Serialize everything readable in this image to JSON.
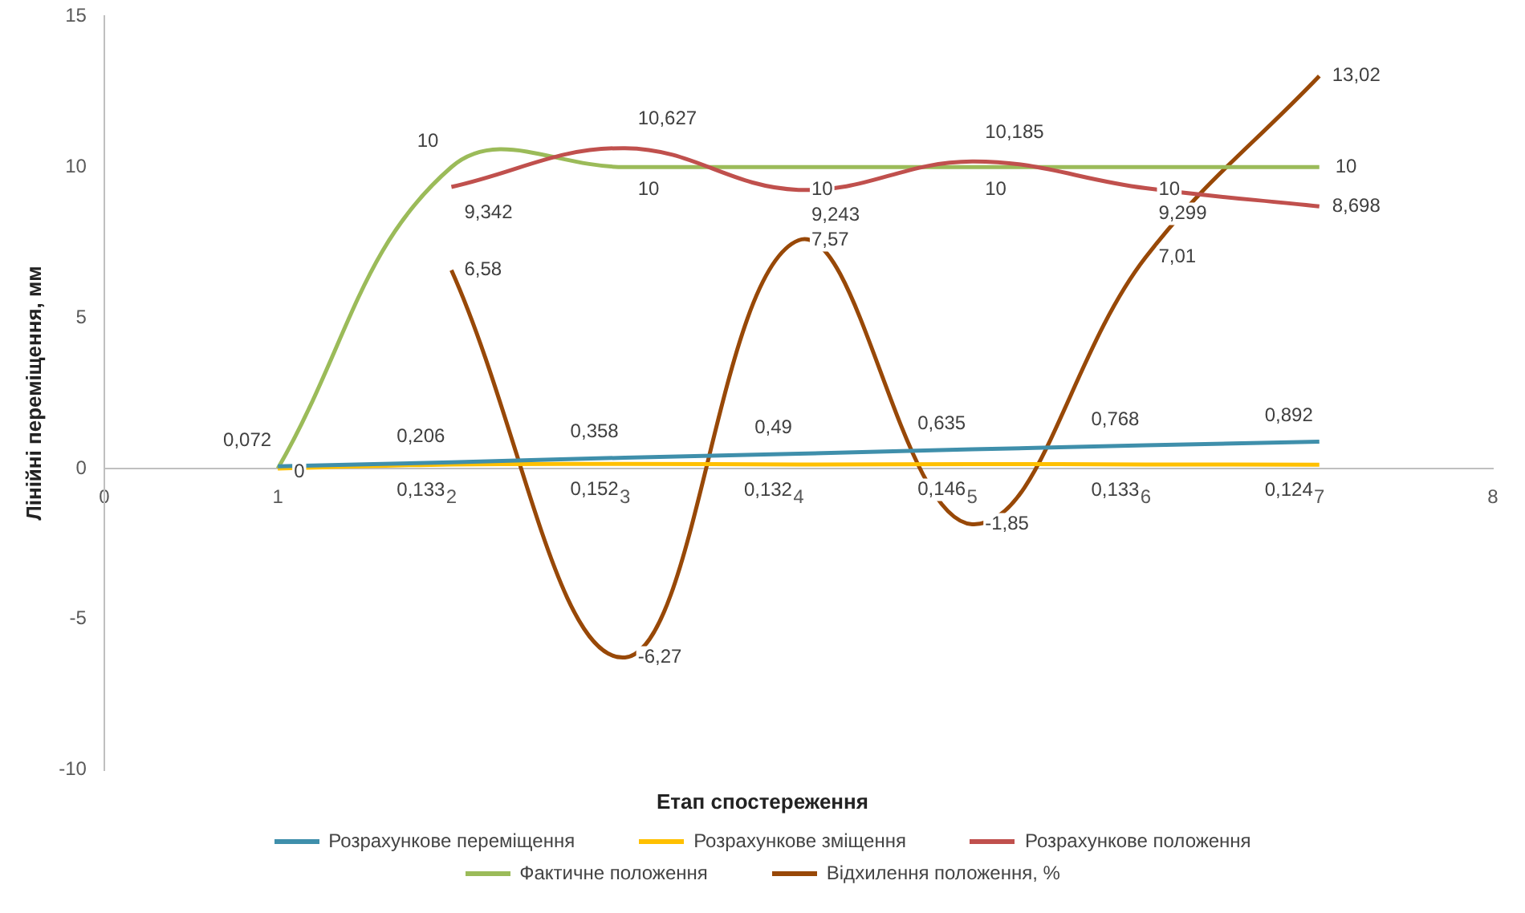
{
  "chart_data": {
    "type": "line",
    "xlabel": "Етап спостереження",
    "ylabel": "Лінійні переміщення, мм",
    "xlim": [
      0,
      8
    ],
    "xticks": [
      0,
      1,
      2,
      3,
      4,
      5,
      6,
      7,
      8
    ],
    "ylim": [
      -10,
      15
    ],
    "yticks": [
      -10,
      -5,
      0,
      5,
      10,
      15
    ],
    "grid": false,
    "legend": "bottom",
    "marker": "none",
    "series": [
      {
        "name": "Розрахункове переміщення",
        "color": "#3f8fab",
        "x": [
          1,
          2,
          3,
          4,
          5,
          6,
          7
        ],
        "values": [
          0.072,
          0.206,
          0.358,
          0.49,
          0.635,
          0.768,
          0.892
        ],
        "value_labels": [
          "0,072",
          "0,206",
          "0,358",
          "0,49",
          "0,635",
          "0,768",
          "0,892"
        ]
      },
      {
        "name": "Розрахункове зміщення",
        "color": "#ffc000",
        "x": [
          1,
          2,
          3,
          4,
          5,
          6,
          7
        ],
        "values": [
          0,
          0.133,
          0.152,
          0.132,
          0.146,
          0.133,
          0.124
        ],
        "value_labels": [
          "0",
          "0,133",
          "0,152",
          "0,132",
          "0,146",
          "0,133",
          "0,124"
        ]
      },
      {
        "name": "Розрахункове положення",
        "color": "#c0504d",
        "x": [
          2,
          3,
          4,
          5,
          6,
          7
        ],
        "values": [
          9.342,
          10.627,
          9.243,
          10.185,
          9.299,
          8.698
        ],
        "value_labels": [
          "9,342",
          "10,627",
          "9,243",
          "10,185",
          "9,299",
          "8,698"
        ]
      },
      {
        "name": "Фактичне положення",
        "color": "#9bbb59",
        "x": [
          1,
          2,
          3,
          4,
          5,
          6,
          7
        ],
        "values": [
          0,
          10,
          10,
          10,
          10,
          10,
          10
        ],
        "value_labels": [
          null,
          "10",
          "10",
          "10",
          "10",
          "10",
          "10"
        ]
      },
      {
        "name": "Відхилення положення, %",
        "color": "#984807",
        "x": [
          2,
          3,
          4,
          5,
          6,
          7
        ],
        "values": [
          6.58,
          -6.27,
          7.57,
          -1.85,
          7.01,
          13.02
        ],
        "value_labels": [
          "6,58",
          "-6,27",
          "7,57",
          "-1,85",
          "7,01",
          "13,02"
        ]
      }
    ]
  }
}
